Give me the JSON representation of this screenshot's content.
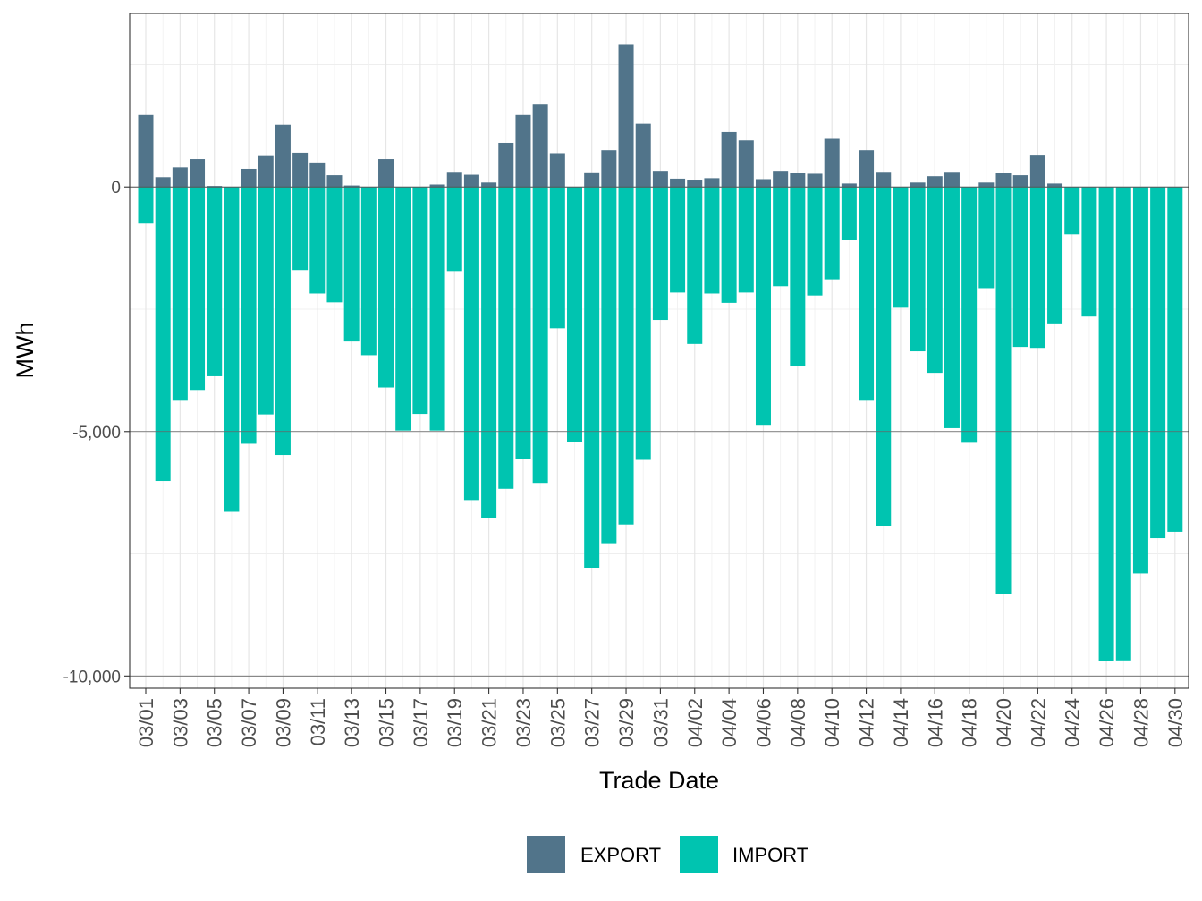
{
  "chart_data": {
    "type": "bar",
    "stacked": true,
    "title": "",
    "xlabel": "Trade Date",
    "ylabel": "MWh",
    "ylim": [
      -10250,
      3550
    ],
    "yticks": [
      0,
      -5000,
      -10000
    ],
    "ytick_labels": [
      "0",
      "-5,000",
      "-10,000"
    ],
    "categories": [
      "03/01",
      "03/02",
      "03/03",
      "03/04",
      "03/05",
      "03/06",
      "03/07",
      "03/08",
      "03/09",
      "03/10",
      "03/11",
      "03/12",
      "03/13",
      "03/14",
      "03/15",
      "03/16",
      "03/17",
      "03/18",
      "03/19",
      "03/20",
      "03/21",
      "03/22",
      "03/23",
      "03/24",
      "03/25",
      "03/26",
      "03/27",
      "03/28",
      "03/29",
      "03/30",
      "03/31",
      "04/01",
      "04/02",
      "04/03",
      "04/04",
      "04/05",
      "04/06",
      "04/07",
      "04/08",
      "04/09",
      "04/10",
      "04/11",
      "04/12",
      "04/13",
      "04/14",
      "04/15",
      "04/16",
      "04/17",
      "04/18",
      "04/19",
      "04/20",
      "04/21",
      "04/22",
      "04/23",
      "04/24",
      "04/25",
      "04/26",
      "04/27",
      "04/28",
      "04/29",
      "04/30"
    ],
    "xtick_labels": [
      "03/01",
      "03/03",
      "03/05",
      "03/07",
      "03/09",
      "03/11",
      "03/13",
      "03/15",
      "03/17",
      "03/19",
      "03/21",
      "03/23",
      "03/25",
      "03/27",
      "03/29",
      "03/31",
      "04/02",
      "04/04",
      "04/06",
      "04/08",
      "04/10",
      "04/12",
      "04/14",
      "04/16",
      "04/18",
      "04/20",
      "04/22",
      "04/24",
      "04/26",
      "04/28",
      "04/30"
    ],
    "series": [
      {
        "name": "EXPORT",
        "color": "#51748a",
        "values": [
          1470,
          200,
          400,
          570,
          20,
          0,
          370,
          650,
          1270,
          700,
          500,
          240,
          30,
          0,
          570,
          0,
          0,
          50,
          310,
          250,
          90,
          900,
          1470,
          1700,
          690,
          0,
          300,
          750,
          2920,
          1290,
          330,
          170,
          150,
          180,
          1120,
          950,
          160,
          330,
          280,
          270,
          1000,
          70,
          750,
          310,
          0,
          90,
          220,
          310,
          0,
          90,
          280,
          240,
          660,
          70,
          0,
          0,
          0,
          0,
          0,
          0,
          0
        ]
      },
      {
        "name": "IMPORT",
        "color": "#00c4b0",
        "values": [
          -750,
          -6010,
          -4370,
          -4150,
          -3870,
          -6640,
          -5250,
          -4650,
          -5480,
          -1700,
          -2180,
          -2360,
          -3160,
          -3440,
          -4100,
          -4980,
          -4640,
          -4980,
          -1720,
          -6400,
          -6770,
          -6170,
          -5560,
          -6050,
          -2890,
          -5210,
          -7800,
          -7300,
          -6900,
          -5580,
          -2720,
          -2160,
          -3210,
          -2180,
          -2370,
          -2160,
          -4880,
          -2030,
          -3670,
          -2220,
          -1890,
          -1090,
          -4370,
          -6940,
          -2470,
          -3360,
          -3800,
          -4930,
          -5230,
          -2070,
          -8330,
          -3270,
          -3290,
          -2790,
          -970,
          -2650,
          -9700,
          -9680,
          -7900,
          -7180,
          -7050
        ]
      }
    ],
    "legend": {
      "position": "bottom",
      "entries": [
        "EXPORT",
        "IMPORT"
      ]
    },
    "grid": true
  }
}
